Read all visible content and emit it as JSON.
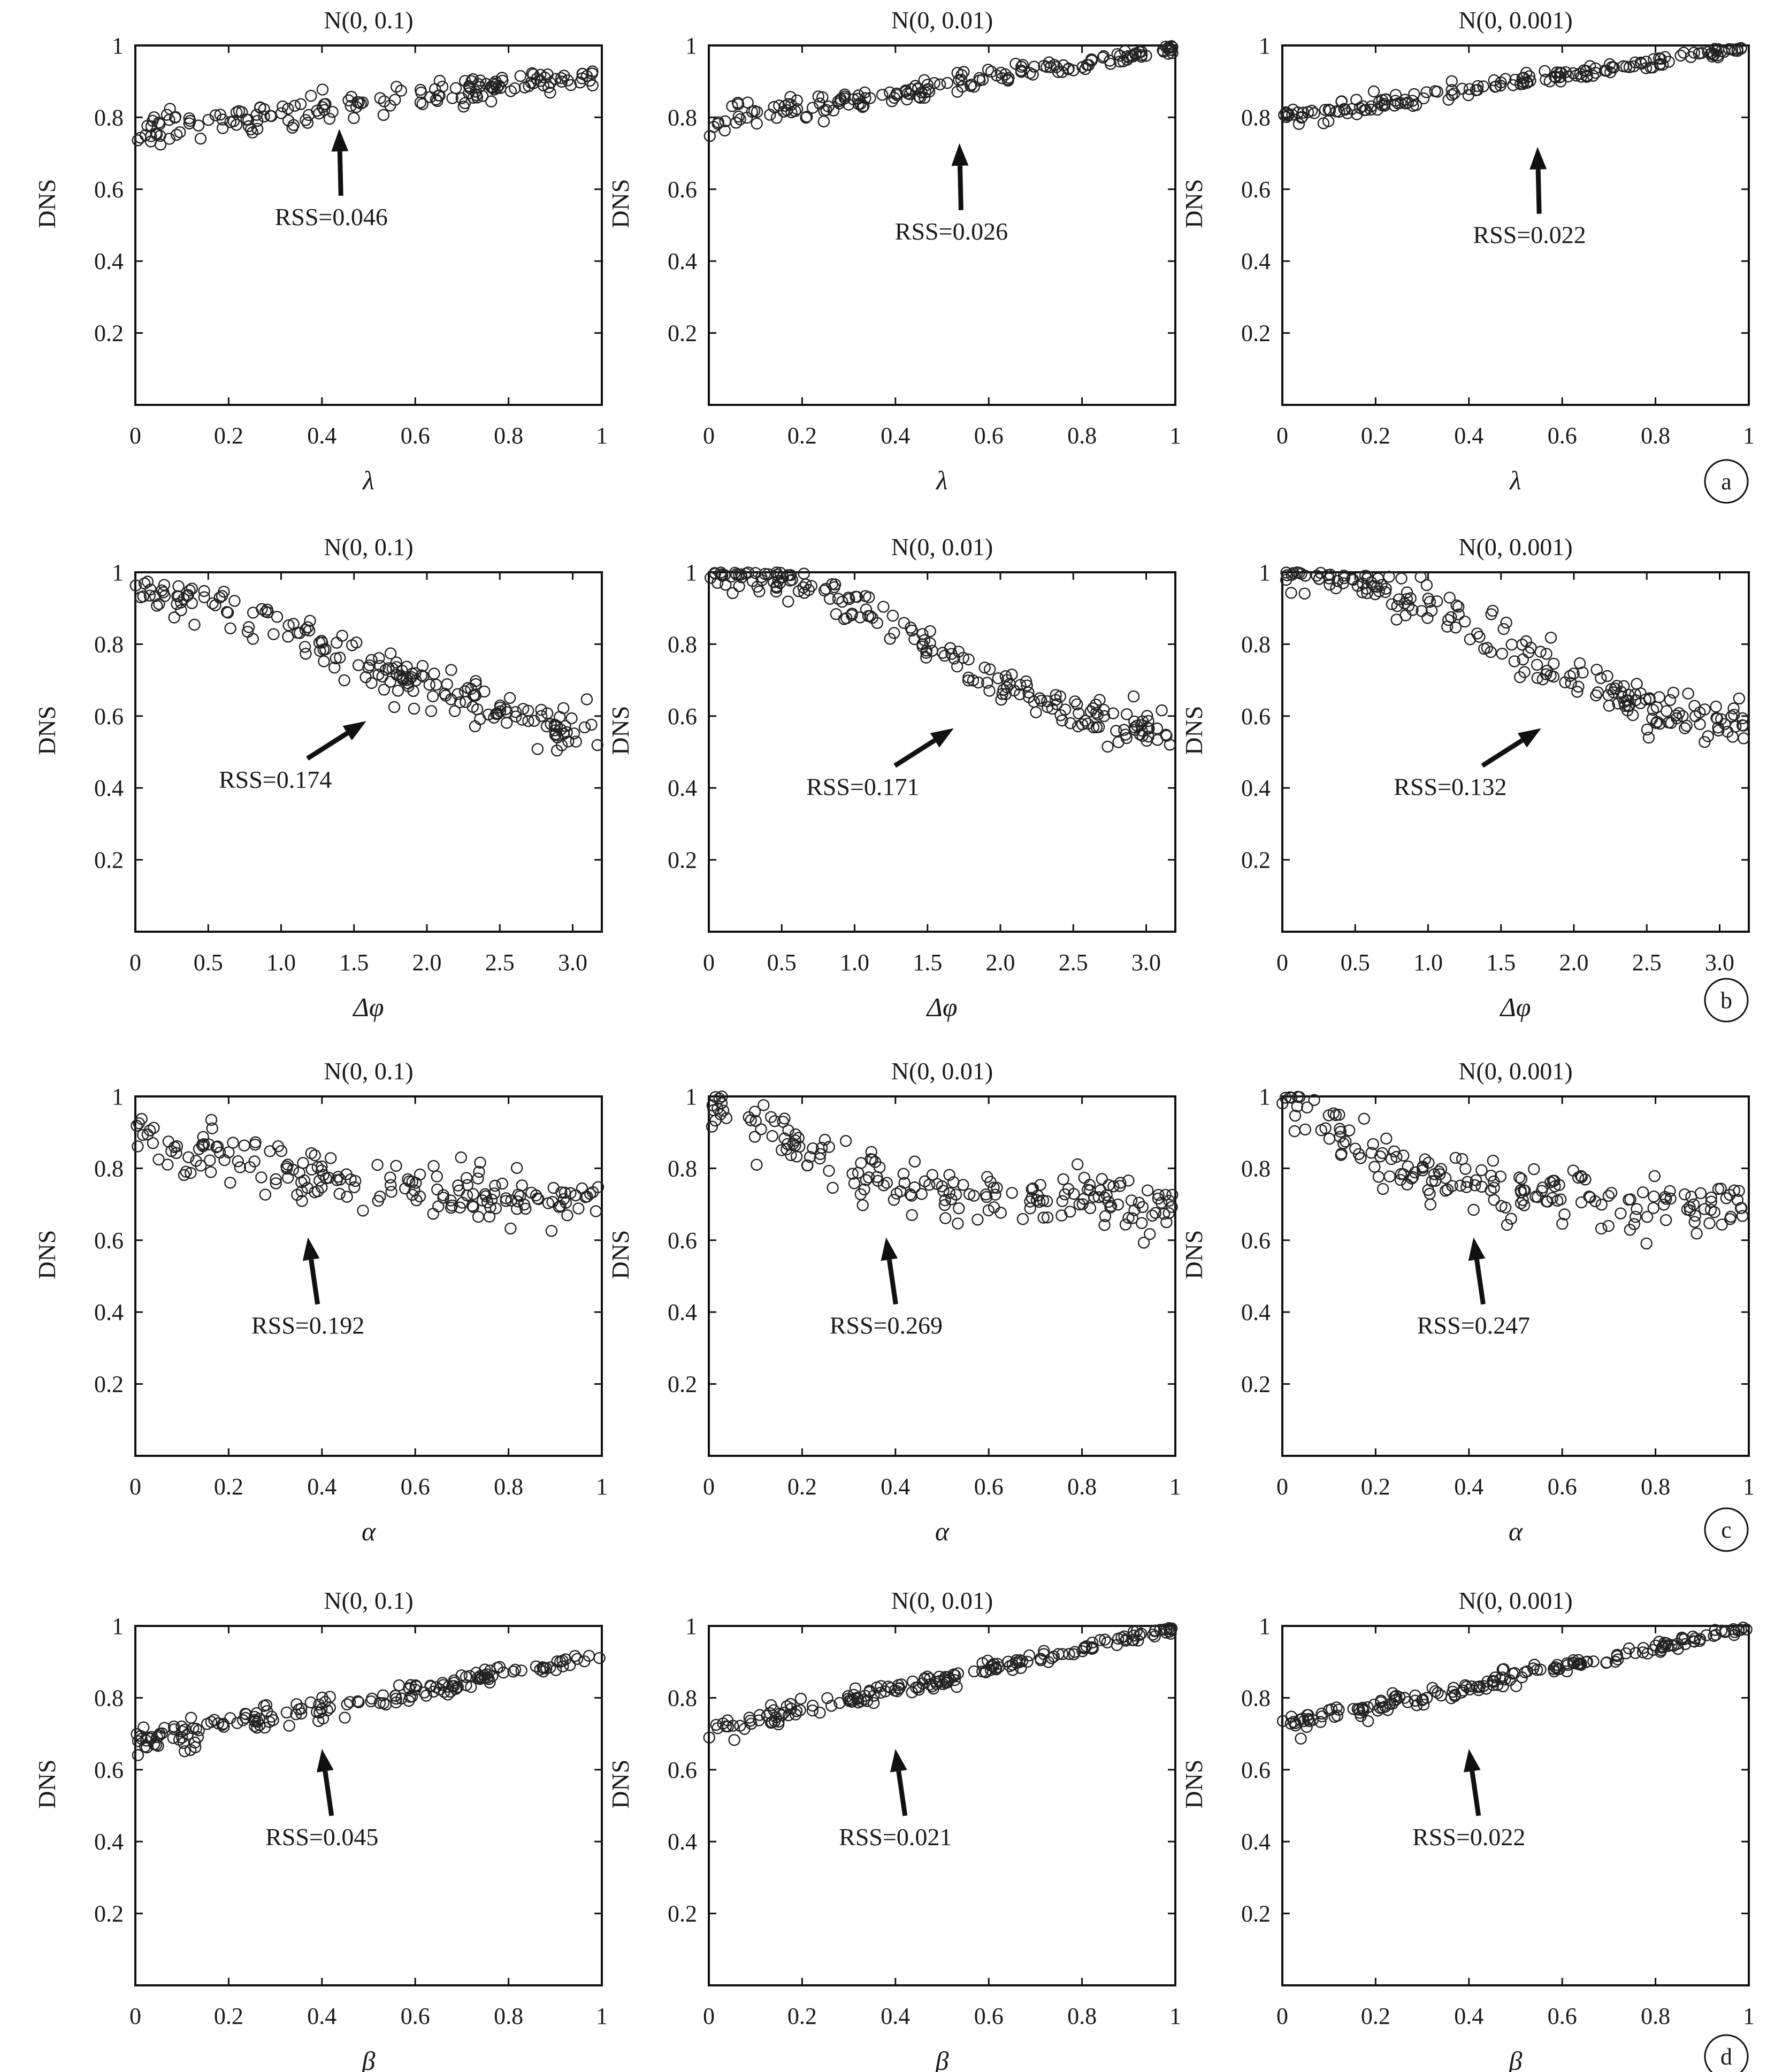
{
  "figure": {
    "row_labels": [
      "a",
      "b",
      "c",
      "d"
    ]
  },
  "chart_data": [
    {
      "row": 0,
      "col": 0,
      "type": "scatter",
      "title": "N(0, 0.1)",
      "xlabel": "λ",
      "ylabel": "DNS",
      "xlim": [
        0,
        1
      ],
      "ylim": [
        0,
        1
      ],
      "xticks": [
        "0",
        "0.2",
        "0.4",
        "0.6",
        "0.8",
        "1"
      ],
      "xtick_values": [
        0,
        0.2,
        0.4,
        0.6,
        0.8,
        1
      ],
      "yticks": [
        "0.2",
        "0.4",
        "0.6",
        "0.8",
        "1"
      ],
      "ytick_values": [
        0.2,
        0.4,
        0.6,
        0.8,
        1
      ],
      "annotation": "RSS=0.046",
      "points": {
        "shape": "linear",
        "n": 170,
        "start": 0.76,
        "end": 0.92,
        "noise": 0.028,
        "seed": 11
      }
    },
    {
      "row": 0,
      "col": 1,
      "type": "scatter",
      "title": "N(0, 0.01)",
      "xlabel": "λ",
      "ylabel": "DNS",
      "xlim": [
        0,
        1
      ],
      "ylim": [
        0,
        1
      ],
      "xticks": [
        "0",
        "0.2",
        "0.4",
        "0.6",
        "0.8",
        "1"
      ],
      "xtick_values": [
        0,
        0.2,
        0.4,
        0.6,
        0.8,
        1
      ],
      "yticks": [
        "0.2",
        "0.4",
        "0.6",
        "0.8",
        "1"
      ],
      "ytick_values": [
        0.2,
        0.4,
        0.6,
        0.8,
        1
      ],
      "annotation": "RSS=0.026",
      "points": {
        "shape": "linear",
        "n": 170,
        "start": 0.79,
        "end": 0.99,
        "noise": 0.018,
        "seed": 12
      }
    },
    {
      "row": 0,
      "col": 2,
      "type": "scatter",
      "title": "N(0, 0.001)",
      "xlabel": "λ",
      "ylabel": "DNS",
      "xlim": [
        0,
        1
      ],
      "ylim": [
        0,
        1
      ],
      "xticks": [
        "0",
        "0.2",
        "0.4",
        "0.6",
        "0.8",
        "1"
      ],
      "xtick_values": [
        0,
        0.2,
        0.4,
        0.6,
        0.8,
        1
      ],
      "yticks": [
        "0.2",
        "0.4",
        "0.6",
        "0.8",
        "1"
      ],
      "ytick_values": [
        0.2,
        0.4,
        0.6,
        0.8,
        1
      ],
      "annotation": "RSS=0.022",
      "points": {
        "shape": "linear",
        "n": 170,
        "start": 0.8,
        "end": 0.995,
        "noise": 0.014,
        "seed": 13
      }
    },
    {
      "row": 1,
      "col": 0,
      "type": "scatter",
      "title": "N(0, 0.1)",
      "xlabel": "Δφ",
      "ylabel": "DNS",
      "xlim": [
        0,
        3.2
      ],
      "ylim": [
        0,
        1
      ],
      "xticks": [
        "0",
        "0.5",
        "1.0",
        "1.5",
        "2.0",
        "2.5",
        "3.0"
      ],
      "xtick_values": [
        0,
        0.5,
        1.0,
        1.5,
        2.0,
        2.5,
        3.0
      ],
      "yticks": [
        "0.2",
        "0.4",
        "0.6",
        "0.8",
        "1"
      ],
      "ytick_values": [
        0.2,
        0.4,
        0.6,
        0.8,
        1
      ],
      "annotation": "RSS=0.174",
      "points": {
        "shape": "cosine",
        "n": 190,
        "start": 0.93,
        "end": 0.57,
        "noise": 0.03,
        "seed": 21
      }
    },
    {
      "row": 1,
      "col": 1,
      "type": "scatter",
      "title": "N(0, 0.01)",
      "xlabel": "Δφ",
      "ylabel": "DNS",
      "xlim": [
        0,
        3.2
      ],
      "ylim": [
        0,
        1
      ],
      "xticks": [
        "0",
        "0.5",
        "1.0",
        "1.5",
        "2.0",
        "2.5",
        "3.0"
      ],
      "xtick_values": [
        0,
        0.5,
        1.0,
        1.5,
        2.0,
        2.5,
        3.0
      ],
      "yticks": [
        "0.2",
        "0.4",
        "0.6",
        "0.8",
        "1"
      ],
      "ytick_values": [
        0.2,
        0.4,
        0.6,
        0.8,
        1
      ],
      "annotation": "RSS=0.171",
      "points": {
        "shape": "cosine",
        "n": 190,
        "start": 1.0,
        "end": 0.56,
        "noise": 0.028,
        "seed": 22
      }
    },
    {
      "row": 1,
      "col": 2,
      "type": "scatter",
      "title": "N(0, 0.001)",
      "xlabel": "Δφ",
      "ylabel": "DNS",
      "xlim": [
        0,
        3.2
      ],
      "ylim": [
        0,
        1
      ],
      "xticks": [
        "0",
        "0.5",
        "1.0",
        "1.5",
        "2.0",
        "2.5",
        "3.0"
      ],
      "xtick_values": [
        0,
        0.5,
        1.0,
        1.5,
        2.0,
        2.5,
        3.0
      ],
      "yticks": [
        "0.2",
        "0.4",
        "0.6",
        "0.8",
        "1"
      ],
      "ytick_values": [
        0.2,
        0.4,
        0.6,
        0.8,
        1
      ],
      "annotation": "RSS=0.132",
      "points": {
        "shape": "cosine",
        "n": 190,
        "start": 1.0,
        "end": 0.58,
        "noise": 0.032,
        "seed": 23
      }
    },
    {
      "row": 2,
      "col": 0,
      "type": "scatter",
      "title": "N(0, 0.1)",
      "xlabel": "α",
      "ylabel": "DNS",
      "xlim": [
        0,
        1
      ],
      "ylim": [
        0,
        1
      ],
      "xticks": [
        "0",
        "0.2",
        "0.4",
        "0.6",
        "0.8",
        "1"
      ],
      "xtick_values": [
        0,
        0.2,
        0.4,
        0.6,
        0.8,
        1
      ],
      "yticks": [
        "0.2",
        "0.4",
        "0.6",
        "0.8",
        "1"
      ],
      "ytick_values": [
        0.2,
        0.4,
        0.6,
        0.8,
        1
      ],
      "annotation": "RSS=0.192",
      "points": {
        "shape": "decay",
        "n": 180,
        "start": 0.9,
        "end": 0.68,
        "rate": 2.2,
        "noise": 0.035,
        "seed": 31
      }
    },
    {
      "row": 2,
      "col": 1,
      "type": "scatter",
      "title": "N(0, 0.01)",
      "xlabel": "α",
      "ylabel": "DNS",
      "xlim": [
        0,
        1
      ],
      "ylim": [
        0,
        1
      ],
      "xticks": [
        "0",
        "0.2",
        "0.4",
        "0.6",
        "0.8",
        "1"
      ],
      "xtick_values": [
        0,
        0.2,
        0.4,
        0.6,
        0.8,
        1
      ],
      "yticks": [
        "0.2",
        "0.4",
        "0.6",
        "0.8",
        "1"
      ],
      "ytick_values": [
        0.2,
        0.4,
        0.6,
        0.8,
        1
      ],
      "annotation": "RSS=0.269",
      "points": {
        "shape": "decay",
        "n": 180,
        "start": 0.99,
        "end": 0.68,
        "rate": 3.2,
        "noise": 0.04,
        "seed": 32
      }
    },
    {
      "row": 2,
      "col": 2,
      "type": "scatter",
      "title": "N(0, 0.001)",
      "xlabel": "α",
      "ylabel": "DNS",
      "xlim": [
        0,
        1
      ],
      "ylim": [
        0,
        1
      ],
      "xticks": [
        "0",
        "0.2",
        "0.4",
        "0.6",
        "0.8",
        "1"
      ],
      "xtick_values": [
        0,
        0.2,
        0.4,
        0.6,
        0.8,
        1
      ],
      "yticks": [
        "0.2",
        "0.4",
        "0.6",
        "0.8",
        "1"
      ],
      "ytick_values": [
        0.2,
        0.4,
        0.6,
        0.8,
        1
      ],
      "annotation": "RSS=0.247",
      "points": {
        "shape": "decay",
        "n": 180,
        "start": 0.99,
        "end": 0.69,
        "rate": 3.6,
        "noise": 0.038,
        "seed": 33
      }
    },
    {
      "row": 3,
      "col": 0,
      "type": "scatter",
      "title": "N(0, 0.1)",
      "xlabel": "β",
      "ylabel": "DNS",
      "xlim": [
        0,
        1
      ],
      "ylim": [
        0,
        1
      ],
      "xticks": [
        "0",
        "0.2",
        "0.4",
        "0.6",
        "0.8",
        "1"
      ],
      "xtick_values": [
        0,
        0.2,
        0.4,
        0.6,
        0.8,
        1
      ],
      "yticks": [
        "0.2",
        "0.4",
        "0.6",
        "0.8",
        "1"
      ],
      "ytick_values": [
        0.2,
        0.4,
        0.6,
        0.8,
        1
      ],
      "annotation": "RSS=0.045",
      "points": {
        "shape": "linear",
        "n": 180,
        "start": 0.67,
        "end": 0.92,
        "noise": 0.022,
        "seed": 41
      }
    },
    {
      "row": 3,
      "col": 1,
      "type": "scatter",
      "title": "N(0, 0.01)",
      "xlabel": "β",
      "ylabel": "DNS",
      "xlim": [
        0,
        1
      ],
      "ylim": [
        0,
        1
      ],
      "xticks": [
        "0",
        "0.2",
        "0.4",
        "0.6",
        "0.8",
        "1"
      ],
      "xtick_values": [
        0,
        0.2,
        0.4,
        0.6,
        0.8,
        1
      ],
      "yticks": [
        "0.2",
        "0.4",
        "0.6",
        "0.8",
        "1"
      ],
      "ytick_values": [
        0.2,
        0.4,
        0.6,
        0.8,
        1
      ],
      "annotation": "RSS=0.021",
      "points": {
        "shape": "linear",
        "n": 180,
        "start": 0.71,
        "end": 0.995,
        "noise": 0.015,
        "seed": 42
      }
    },
    {
      "row": 3,
      "col": 2,
      "type": "scatter",
      "title": "N(0, 0.001)",
      "xlabel": "β",
      "ylabel": "DNS",
      "xlim": [
        0,
        1
      ],
      "ylim": [
        0,
        1
      ],
      "xticks": [
        "0",
        "0.2",
        "0.4",
        "0.6",
        "0.8",
        "1"
      ],
      "xtick_values": [
        0,
        0.2,
        0.4,
        0.6,
        0.8,
        1
      ],
      "yticks": [
        "0.2",
        "0.4",
        "0.6",
        "0.8",
        "1"
      ],
      "ytick_values": [
        0.2,
        0.4,
        0.6,
        0.8,
        1
      ],
      "annotation": "RSS=0.022",
      "points": {
        "shape": "linear",
        "n": 180,
        "start": 0.72,
        "end": 0.995,
        "noise": 0.014,
        "seed": 43
      }
    }
  ]
}
